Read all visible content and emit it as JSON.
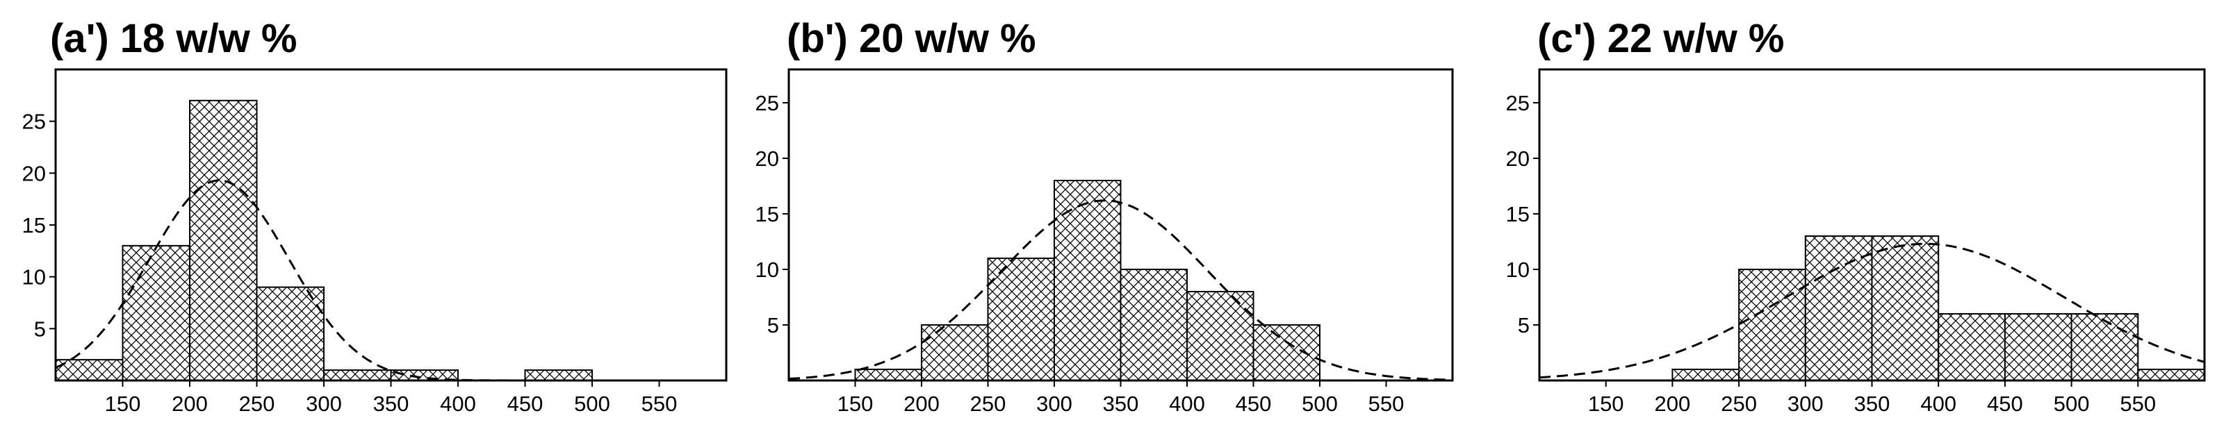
{
  "chart_data": [
    {
      "type": "bar",
      "title": "(a') 18 w/w %",
      "bin_edges": [
        100,
        150,
        200,
        250,
        300,
        350,
        400,
        450,
        500,
        550,
        600
      ],
      "values": [
        2,
        13,
        27,
        9,
        1,
        1,
        0,
        1,
        0,
        0
      ],
      "fit": {
        "type": "normal",
        "peak": 19.3,
        "mean": 222,
        "sd": 52
      },
      "xticks": [
        150,
        200,
        250,
        300,
        350,
        400,
        450,
        500,
        550
      ],
      "yticks": [
        5,
        10,
        15,
        20,
        25
      ],
      "xlim": [
        100,
        600
      ],
      "ylim": [
        0,
        30
      ],
      "xlabel": "",
      "ylabel": ""
    },
    {
      "type": "bar",
      "title": "(b') 20 w/w %",
      "bin_edges": [
        100,
        150,
        200,
        250,
        300,
        350,
        400,
        450,
        500,
        550,
        600
      ],
      "values": [
        0,
        1,
        5,
        11,
        18,
        10,
        8,
        5,
        0,
        0
      ],
      "fit": {
        "type": "normal",
        "peak": 16.2,
        "mean": 338,
        "sd": 78
      },
      "xticks": [
        150,
        200,
        250,
        300,
        350,
        400,
        450,
        500,
        550
      ],
      "yticks": [
        5,
        10,
        15,
        20,
        25
      ],
      "xlim": [
        100,
        600
      ],
      "ylim": [
        0,
        28
      ],
      "xlabel": "",
      "ylabel": ""
    },
    {
      "type": "bar",
      "title": "(c') 22 w/w %",
      "bin_edges": [
        100,
        150,
        200,
        250,
        300,
        350,
        400,
        450,
        500,
        550,
        600
      ],
      "values": [
        0,
        0,
        1,
        10,
        13,
        13,
        6,
        6,
        6,
        1
      ],
      "fit": {
        "type": "normal",
        "peak": 12.3,
        "mean": 390,
        "sd": 105
      },
      "xticks": [
        150,
        200,
        250,
        300,
        350,
        400,
        450,
        500,
        550
      ],
      "yticks": [
        5,
        10,
        15,
        20,
        25
      ],
      "xlim": [
        100,
        600
      ],
      "ylim": [
        0,
        28
      ],
      "xlabel": "",
      "ylabel": ""
    }
  ]
}
